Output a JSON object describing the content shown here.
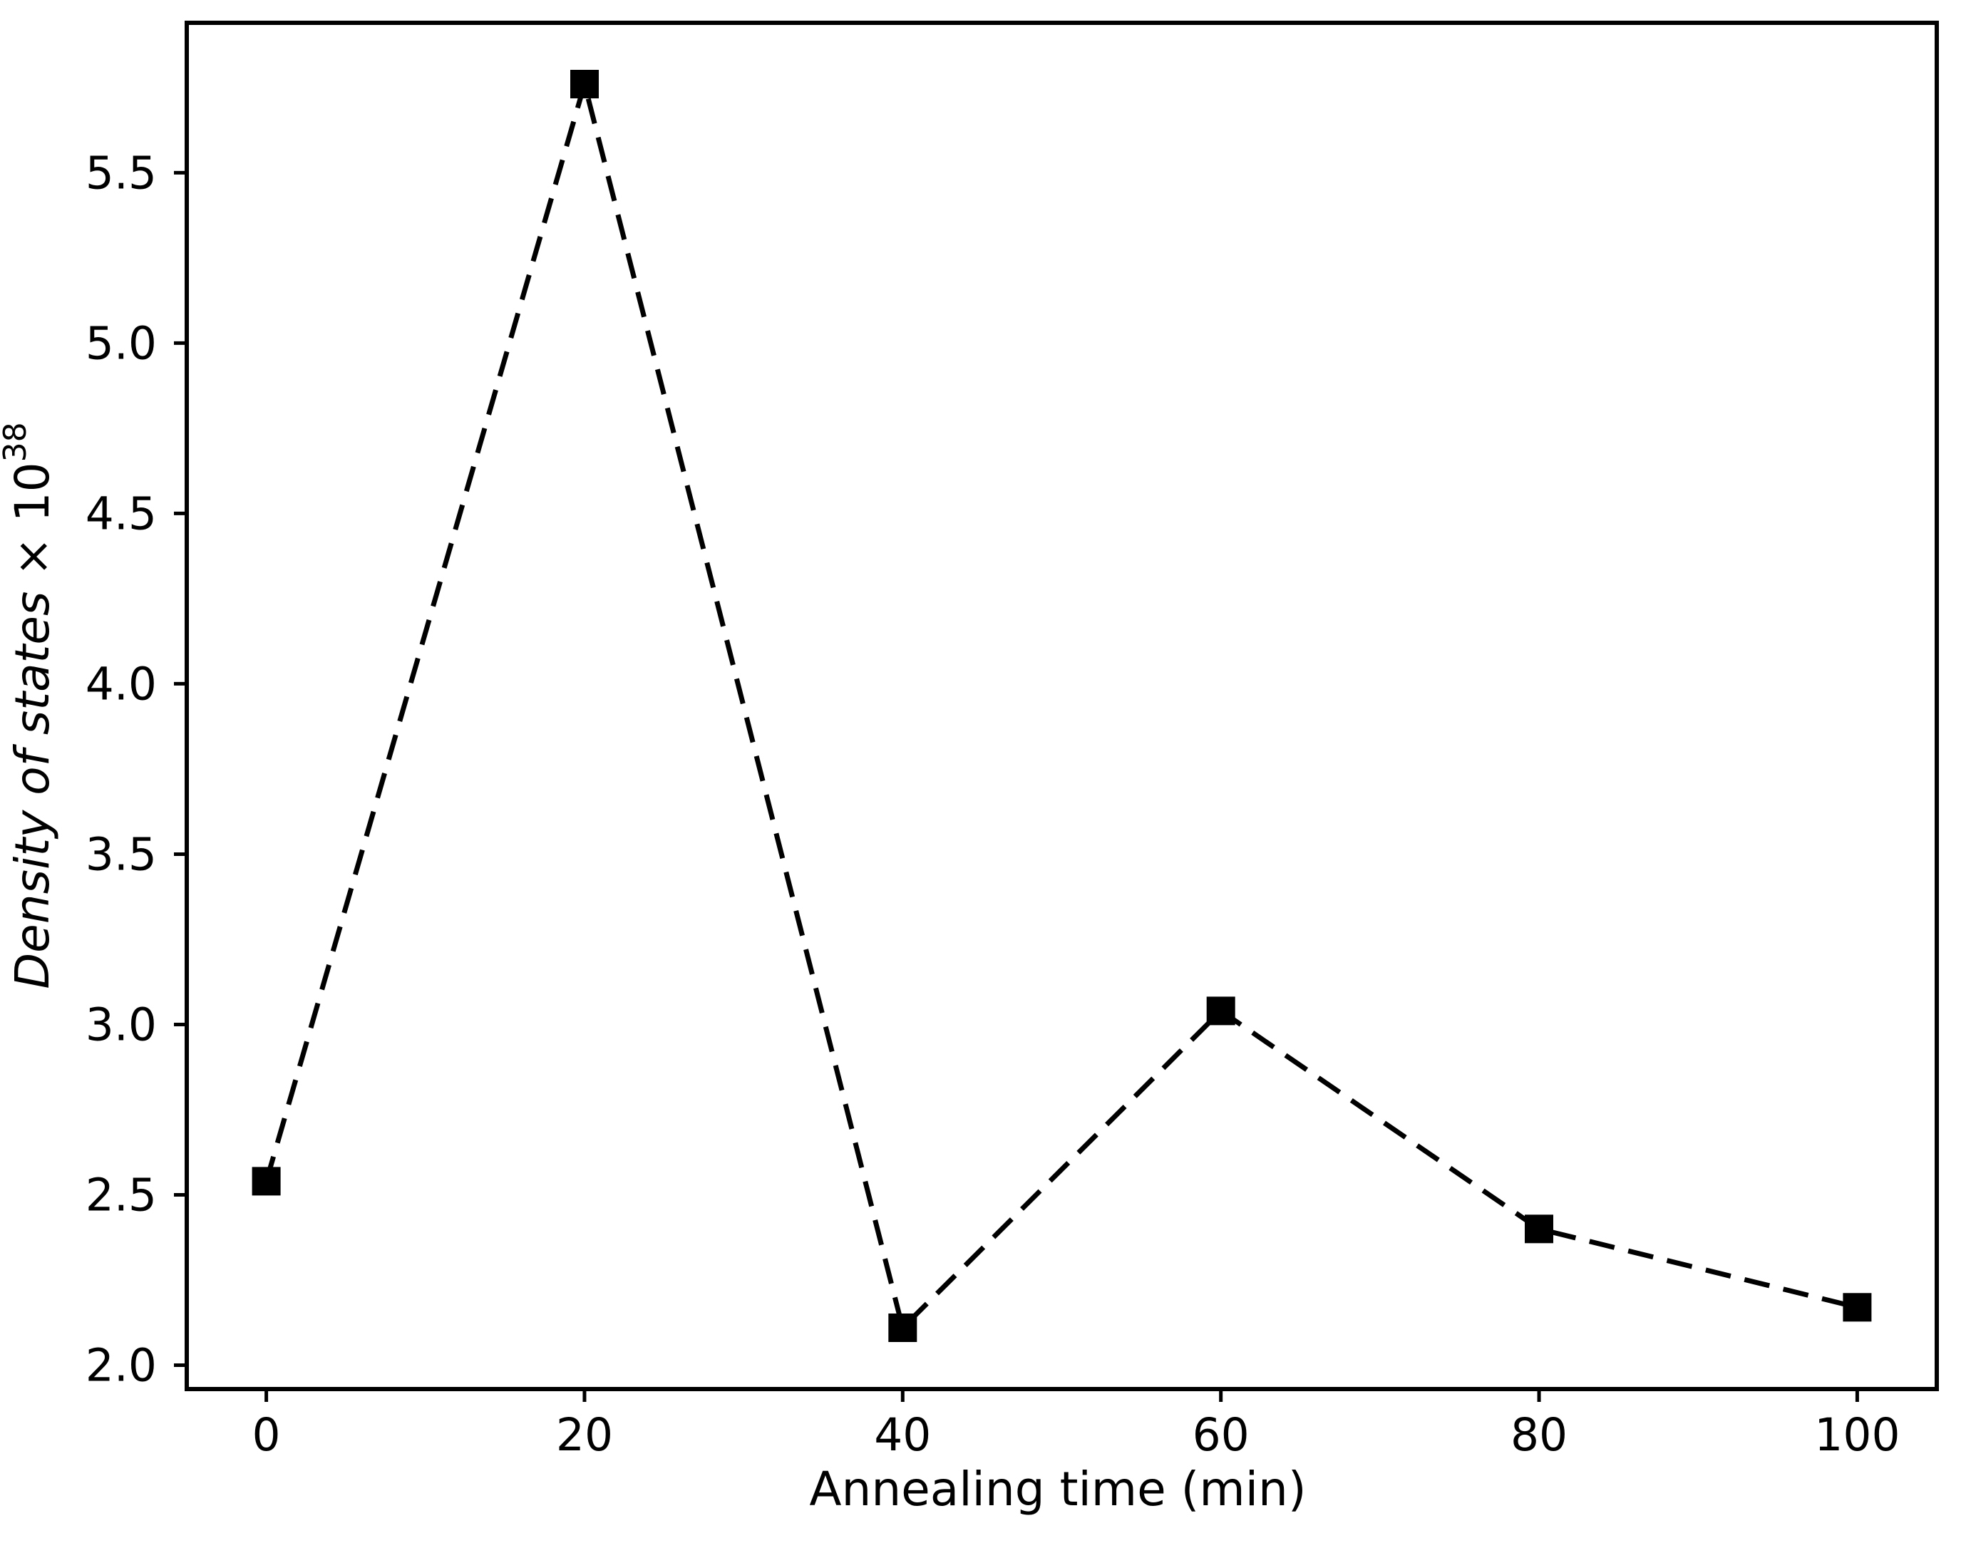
{
  "figure": {
    "background_color": "#ffffff",
    "axis_color": "#000000",
    "line_color": "#000000",
    "marker_color": "#000000"
  },
  "chart_data": {
    "type": "line",
    "title": "",
    "xlabel": "Annealing time (min)",
    "ylabel_plain": "Density of states × 10^38",
    "ylabel_parts": [
      {
        "text": "Density of states ",
        "style": "italic"
      },
      {
        "text": "× 10",
        "style": "normal"
      },
      {
        "text": "38",
        "style": "superscript"
      }
    ],
    "x": [
      0,
      20,
      40,
      60,
      80,
      100
    ],
    "y": [
      2.54,
      5.76,
      2.11,
      3.04,
      2.4,
      2.17
    ],
    "line_style": "dashed",
    "marker": "square",
    "grid": false,
    "legend": null,
    "xlim": [
      -5,
      105
    ],
    "ylim": [
      1.93,
      5.94
    ],
    "xticks": [
      0,
      20,
      40,
      60,
      80,
      100
    ],
    "xtick_labels": [
      "0",
      "20",
      "40",
      "60",
      "80",
      "100"
    ],
    "yticks": [
      2.0,
      2.5,
      3.0,
      3.5,
      4.0,
      4.5,
      5.0,
      5.5
    ],
    "ytick_labels": [
      "2.0",
      "2.5",
      "3.0",
      "3.5",
      "4.0",
      "4.5",
      "5.0",
      "5.5"
    ]
  }
}
